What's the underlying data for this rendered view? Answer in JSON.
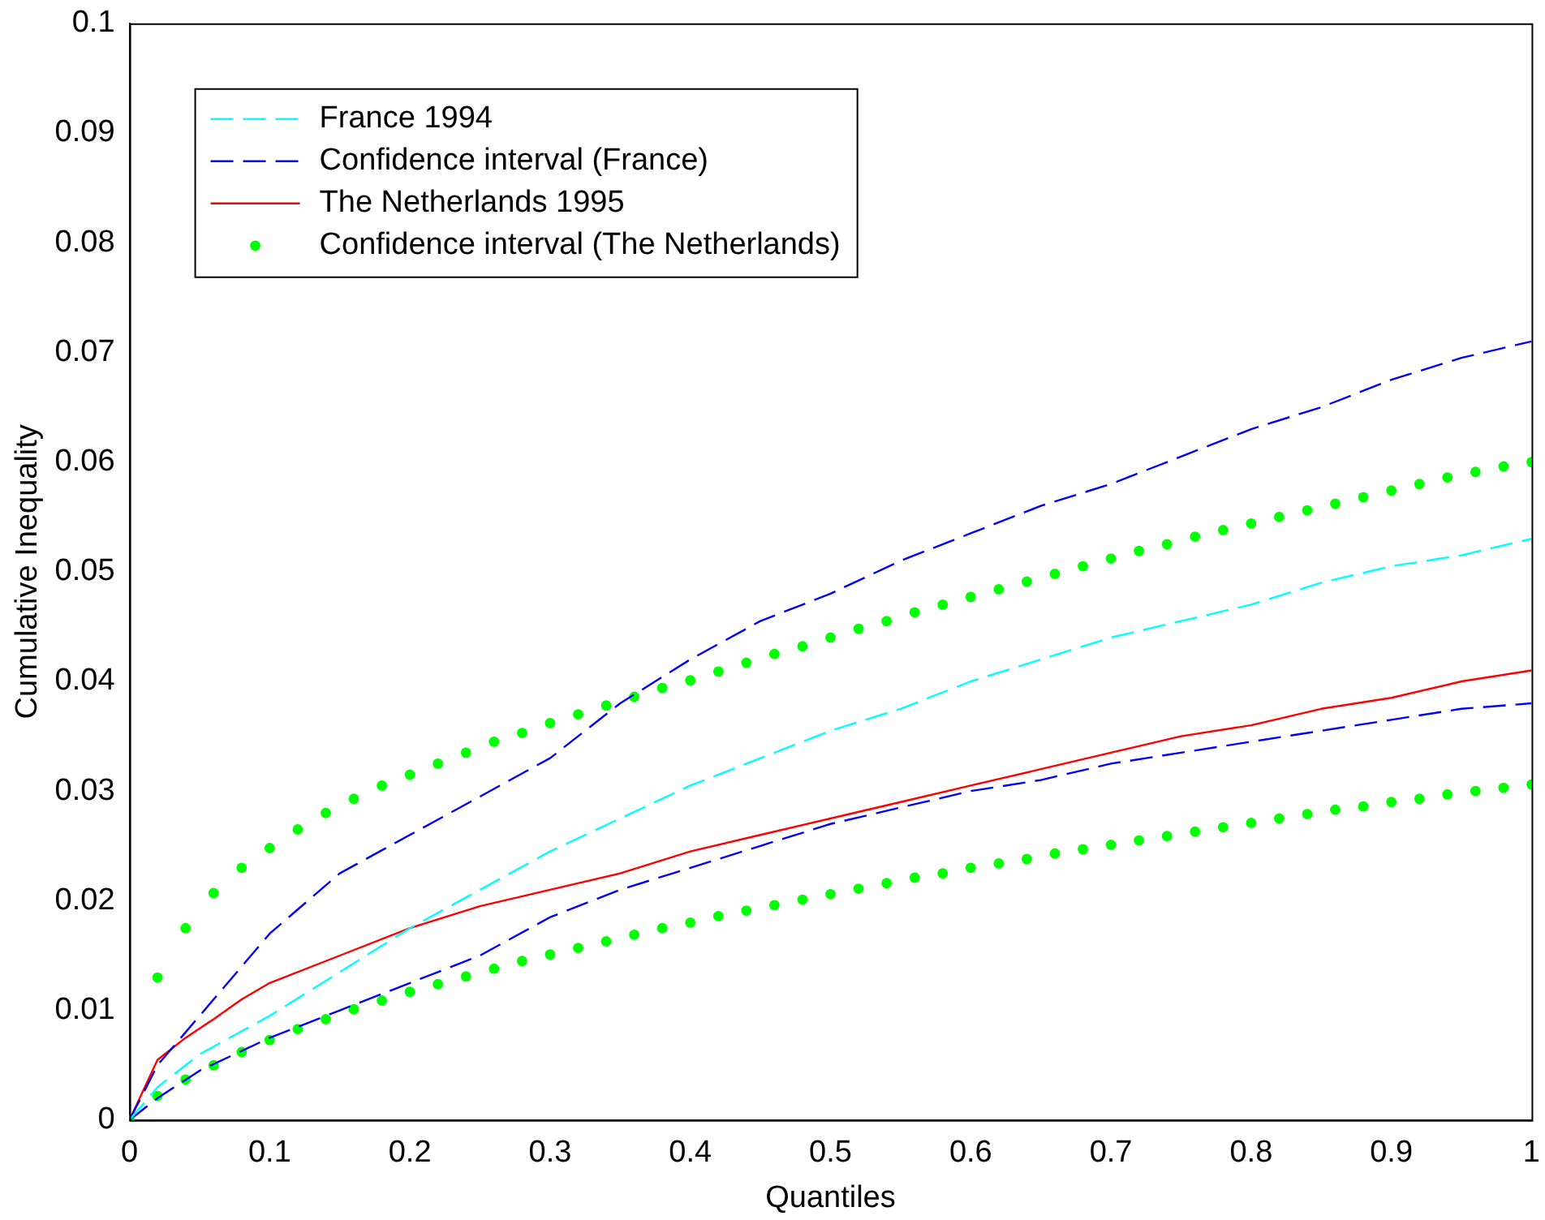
{
  "chart_data": {
    "type": "line",
    "xlabel": "Quantiles",
    "ylabel": "Cumulative Inequality",
    "xlim": [
      0,
      1
    ],
    "ylim": [
      0,
      0.1
    ],
    "xticks": [
      0,
      0.1,
      0.2,
      0.3,
      0.4,
      0.5,
      0.6,
      0.7,
      0.8,
      0.9,
      1
    ],
    "yticks": [
      0,
      0.01,
      0.02,
      0.03,
      0.04,
      0.05,
      0.06,
      0.07,
      0.08,
      0.09,
      0.1
    ],
    "grid": false,
    "legend": "top left",
    "series": [
      {
        "name": "France 1994",
        "color": "#00ffff",
        "line_style": "dashed",
        "marker": "none",
        "x": [
          0,
          0.02,
          0.05,
          0.1,
          0.15,
          0.2,
          0.25,
          0.3,
          0.35,
          0.4,
          0.45,
          0.5,
          0.55,
          0.6,
          0.65,
          0.7,
          0.75,
          0.8,
          0.85,
          0.9,
          0.95,
          1
        ],
        "values": [
          0,
          0.003,
          0.006,
          0.0095,
          0.0135,
          0.0175,
          0.021,
          0.0245,
          0.0275,
          0.0305,
          0.033,
          0.0355,
          0.0375,
          0.04,
          0.042,
          0.044,
          0.0455,
          0.047,
          0.049,
          0.0505,
          0.0515,
          0.053
        ]
      },
      {
        "name": "Confidence interval (France)",
        "color": "#0000ff",
        "line_style": "dashed",
        "marker": "none",
        "x": [
          0,
          0.02,
          0.04,
          0.06,
          0.08,
          0.1,
          0.15,
          0.2,
          0.25,
          0.3,
          0.35,
          0.4,
          0.45,
          0.5,
          0.55,
          0.6,
          0.65,
          0.7,
          0.75,
          0.8,
          0.85,
          0.9,
          0.95,
          1
        ],
        "values": [
          0,
          0.005,
          0.008,
          0.011,
          0.014,
          0.017,
          0.0225,
          0.026,
          0.0295,
          0.033,
          0.038,
          0.042,
          0.0455,
          0.048,
          0.051,
          0.0535,
          0.056,
          0.058,
          0.0605,
          0.063,
          0.065,
          0.0675,
          0.0695,
          0.071
        ]
      },
      {
        "color": "#0000ff",
        "line_style": "dashed",
        "marker": "none",
        "x": [
          0,
          0.02,
          0.05,
          0.1,
          0.15,
          0.2,
          0.25,
          0.3,
          0.35,
          0.4,
          0.45,
          0.5,
          0.55,
          0.6,
          0.65,
          0.7,
          0.75,
          0.8,
          0.85,
          0.9,
          0.95,
          1
        ],
        "values": [
          0,
          0.002,
          0.0045,
          0.0075,
          0.01,
          0.0125,
          0.015,
          0.0185,
          0.021,
          0.023,
          0.025,
          0.027,
          0.0285,
          0.03,
          0.031,
          0.0325,
          0.0335,
          0.0345,
          0.0355,
          0.0365,
          0.0375,
          0.038
        ]
      },
      {
        "name": "The Netherlands 1995",
        "color": "#ff0000",
        "line_style": "solid",
        "marker": "none",
        "x": [
          0,
          0.02,
          0.04,
          0.06,
          0.08,
          0.1,
          0.15,
          0.2,
          0.25,
          0.3,
          0.35,
          0.4,
          0.45,
          0.5,
          0.55,
          0.6,
          0.65,
          0.7,
          0.75,
          0.8,
          0.85,
          0.9,
          0.95,
          1
        ],
        "values": [
          0,
          0.0055,
          0.0075,
          0.0092,
          0.011,
          0.0125,
          0.015,
          0.0175,
          0.0195,
          0.021,
          0.0225,
          0.0245,
          0.026,
          0.0275,
          0.029,
          0.0305,
          0.032,
          0.0335,
          0.035,
          0.036,
          0.0375,
          0.0385,
          0.04,
          0.041
        ]
      },
      {
        "name": "Confidence interval (The Netherlands)",
        "type": "scatter",
        "color": "#00ff00",
        "marker": "circle",
        "x": [
          0,
          0.02,
          0.04,
          0.06,
          0.08,
          0.1,
          0.12,
          0.14,
          0.16,
          0.18,
          0.2,
          0.22,
          0.24,
          0.26,
          0.28,
          0.3,
          0.32,
          0.34,
          0.36,
          0.38,
          0.4,
          0.42,
          0.44,
          0.46,
          0.48,
          0.5,
          0.52,
          0.54,
          0.56,
          0.58,
          0.6,
          0.62,
          0.64,
          0.66,
          0.68,
          0.7,
          0.72,
          0.74,
          0.76,
          0.78,
          0.8,
          0.82,
          0.84,
          0.86,
          0.88,
          0.9,
          0.92,
          0.94,
          0.96,
          0.98,
          1
        ],
        "values": [
          0,
          0.013,
          0.0175,
          0.0207,
          0.023,
          0.0248,
          0.0265,
          0.028,
          0.0293,
          0.0305,
          0.0315,
          0.0325,
          0.0335,
          0.0345,
          0.0353,
          0.0362,
          0.037,
          0.0378,
          0.0386,
          0.0394,
          0.0401,
          0.0409,
          0.0417,
          0.0425,
          0.0432,
          0.044,
          0.0448,
          0.0455,
          0.0463,
          0.047,
          0.0477,
          0.0484,
          0.0491,
          0.0498,
          0.0505,
          0.0512,
          0.0519,
          0.0525,
          0.0532,
          0.0538,
          0.0544,
          0.055,
          0.0556,
          0.0562,
          0.0568,
          0.0574,
          0.058,
          0.0586,
          0.0591,
          0.0596,
          0.06
        ]
      },
      {
        "type": "scatter",
        "color": "#00ff00",
        "marker": "circle",
        "x": [
          0,
          0.02,
          0.04,
          0.06,
          0.08,
          0.1,
          0.12,
          0.14,
          0.16,
          0.18,
          0.2,
          0.22,
          0.24,
          0.26,
          0.28,
          0.3,
          0.32,
          0.34,
          0.36,
          0.38,
          0.4,
          0.42,
          0.44,
          0.46,
          0.48,
          0.5,
          0.52,
          0.54,
          0.56,
          0.58,
          0.6,
          0.62,
          0.64,
          0.66,
          0.68,
          0.7,
          0.72,
          0.74,
          0.76,
          0.78,
          0.8,
          0.82,
          0.84,
          0.86,
          0.88,
          0.9,
          0.92,
          0.94,
          0.96,
          0.98,
          1
        ],
        "values": [
          0,
          0.0022,
          0.0037,
          0.005,
          0.0062,
          0.0073,
          0.0083,
          0.0092,
          0.0101,
          0.0109,
          0.0117,
          0.0124,
          0.0131,
          0.0138,
          0.0145,
          0.0151,
          0.0157,
          0.0163,
          0.0169,
          0.0175,
          0.018,
          0.0186,
          0.0191,
          0.0196,
          0.0201,
          0.0206,
          0.0211,
          0.0216,
          0.0221,
          0.0225,
          0.023,
          0.0234,
          0.0238,
          0.0243,
          0.0247,
          0.0251,
          0.0255,
          0.0259,
          0.0263,
          0.0267,
          0.0271,
          0.0275,
          0.0279,
          0.0283,
          0.0286,
          0.029,
          0.0293,
          0.0297,
          0.03,
          0.0303,
          0.0306
        ]
      }
    ]
  }
}
